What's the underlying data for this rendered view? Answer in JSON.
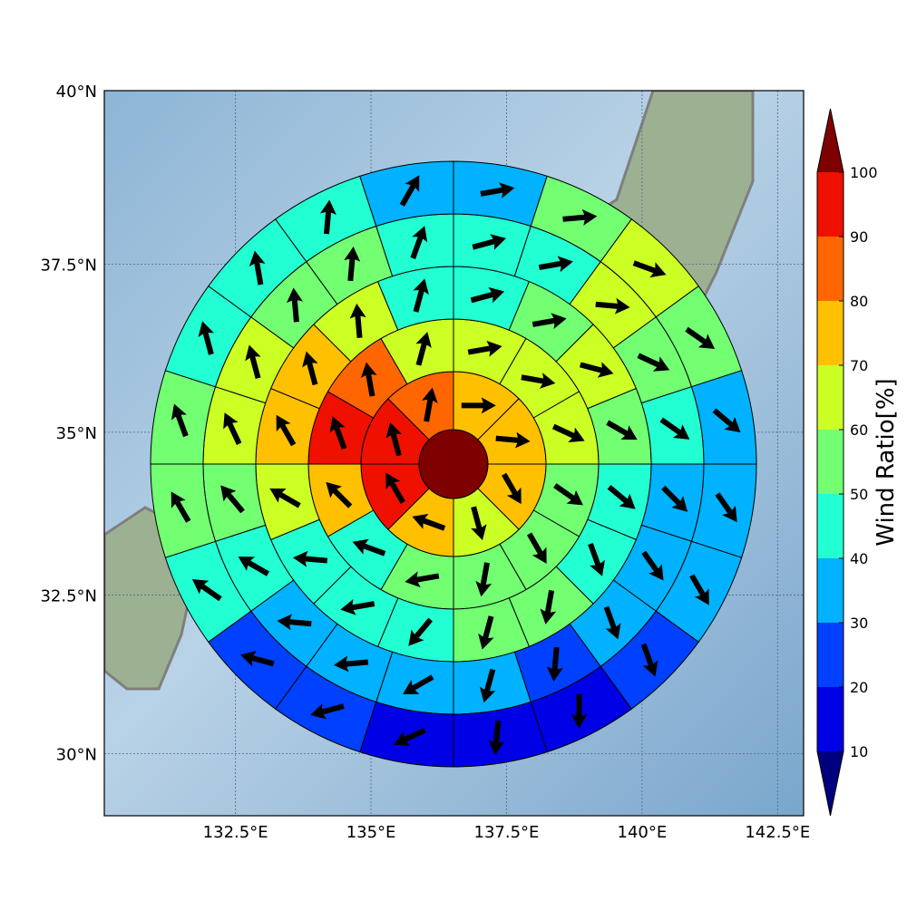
{
  "chart_data": {
    "type": "polar-grid-map",
    "xlim": [
      130.08,
      142.98
    ],
    "ylim": [
      29.0,
      40.0
    ],
    "xticks": [
      {
        "value": 132.5,
        "label": "132.5°E"
      },
      {
        "value": 135,
        "label": "135°E"
      },
      {
        "value": 137.5,
        "label": "137.5°E"
      },
      {
        "value": 140,
        "label": "140°E"
      },
      {
        "value": 142.5,
        "label": "142.5°E"
      }
    ],
    "yticks": [
      {
        "value": 30,
        "label": "30°N"
      },
      {
        "value": 32.5,
        "label": "32.5°N"
      },
      {
        "value": 35,
        "label": "35°N"
      },
      {
        "value": 37.5,
        "label": "37.5°N"
      },
      {
        "value": 40,
        "label": "40°N"
      }
    ],
    "grid": true,
    "center_value": 105,
    "rings": [
      {
        "values": [
          75,
          75,
          75,
          65,
          75,
          95,
          95,
          85
        ],
        "directions": [
          90,
          95,
          150,
          165,
          290,
          330,
          345,
          10
        ]
      },
      {
        "values": [
          65,
          65,
          65,
          55,
          55,
          55,
          55,
          45,
          75,
          95,
          85,
          65
        ],
        "directions": [
          80,
          100,
          115,
          125,
          150,
          190,
          260,
          290,
          315,
          340,
          350,
          15
        ]
      },
      {
        "values": [
          45,
          55,
          65,
          55,
          45,
          45,
          55,
          55,
          45,
          45,
          45,
          65,
          75,
          75,
          65,
          45
        ],
        "directions": [
          75,
          80,
          105,
          120,
          130,
          160,
          190,
          195,
          220,
          260,
          275,
          300,
          330,
          345,
          355,
          15
        ]
      },
      {
        "values": [
          45,
          45,
          65,
          55,
          45,
          35,
          35,
          35,
          25,
          35,
          35,
          35,
          35,
          45,
          55,
          65,
          65,
          55,
          55,
          45
        ],
        "directions": [
          75,
          80,
          95,
          115,
          125,
          135,
          145,
          160,
          185,
          195,
          240,
          265,
          275,
          300,
          320,
          335,
          345,
          355,
          5,
          20
        ]
      },
      {
        "values": [
          35,
          55,
          65,
          55,
          35,
          35,
          35,
          25,
          15,
          15,
          15,
          25,
          25,
          45,
          55,
          55,
          45,
          45,
          45,
          35
        ],
        "directions": [
          80,
          85,
          110,
          125,
          130,
          145,
          150,
          160,
          180,
          185,
          245,
          255,
          285,
          305,
          330,
          340,
          345,
          350,
          5,
          30
        ]
      }
    ],
    "colorbar": {
      "label": "Wind Ratio[%]",
      "levels": [
        10,
        20,
        30,
        40,
        50,
        60,
        70,
        80,
        90,
        100
      ],
      "colors": [
        "#0000e6",
        "#0040ff",
        "#00b2ff",
        "#22ffd2",
        "#72ff72",
        "#ccff24",
        "#ffc000",
        "#ff6600",
        "#f01000"
      ],
      "under": "#00007f",
      "over": "#7f0000"
    }
  }
}
